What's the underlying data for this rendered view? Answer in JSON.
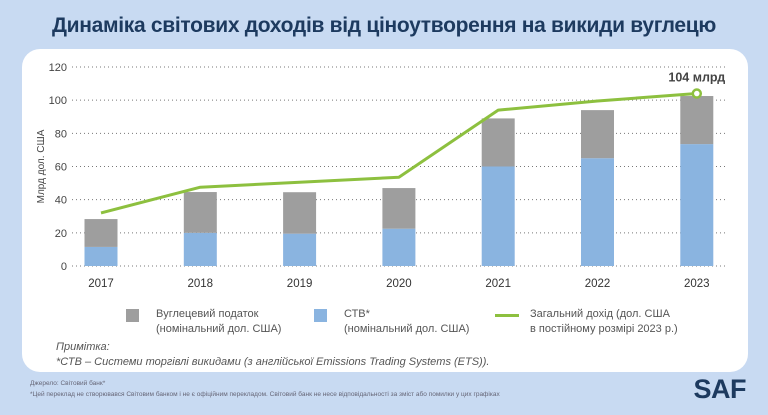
{
  "title": "Динаміка світових доходів від ціноутворення на викиди вуглецю",
  "chart_data": {
    "type": "bar",
    "stacked": true,
    "ylabel": "Млрд дол. США",
    "ylim": [
      0,
      120
    ],
    "yticks": [
      0,
      20,
      40,
      60,
      80,
      100,
      120
    ],
    "grid": true,
    "categories": [
      "2017",
      "2018",
      "2019",
      "2020",
      "2021",
      "2022",
      "2023"
    ],
    "series": [
      {
        "name": "СТВ* (номінальний дол. США)",
        "type": "bar",
        "color": "#8ab4e0",
        "values": [
          11.5,
          20,
          19.5,
          22.5,
          60,
          65,
          73.5
        ]
      },
      {
        "name": "Вуглецевий податок (номінальний дол. США)",
        "type": "bar",
        "color": "#9e9e9e",
        "values": [
          16.8,
          24.6,
          25,
          24.5,
          29,
          29,
          29
        ]
      },
      {
        "name": "Загальний дохід (дол. США в постійному розмірі 2023 р.)",
        "type": "line",
        "color": "#8dc03f",
        "values": [
          32,
          47.5,
          50.5,
          53.5,
          94,
          99.5,
          104
        ]
      }
    ],
    "annotation": "104 млрд",
    "legend_placement": "bottom"
  },
  "legend": [
    {
      "line1": "Вуглецевий податок",
      "line2": "(номінальний дол. США)",
      "color": "#9e9e9e"
    },
    {
      "line1": "СТВ*",
      "line2": "(номінальний дол. США)",
      "color": "#8ab4e0"
    },
    {
      "line1": "Загальний дохід (дол. США",
      "line2": "в постійному розмірі 2023 р.)",
      "color": "#8dc03f"
    }
  ],
  "note": {
    "label": "Примітка:",
    "text": "*СТВ  – Системи торгівлі викидами (з англійської Emissions Trading Systems (ETS))."
  },
  "footer": {
    "source": "Джерело: Світовий банк*",
    "disclaimer": "*Цей переклад не створювався Світовим банком і не є офіційним перекладом. Світовий банк не несе відповідальності за зміст або помилки у цих графіках",
    "logo": "SAF"
  }
}
